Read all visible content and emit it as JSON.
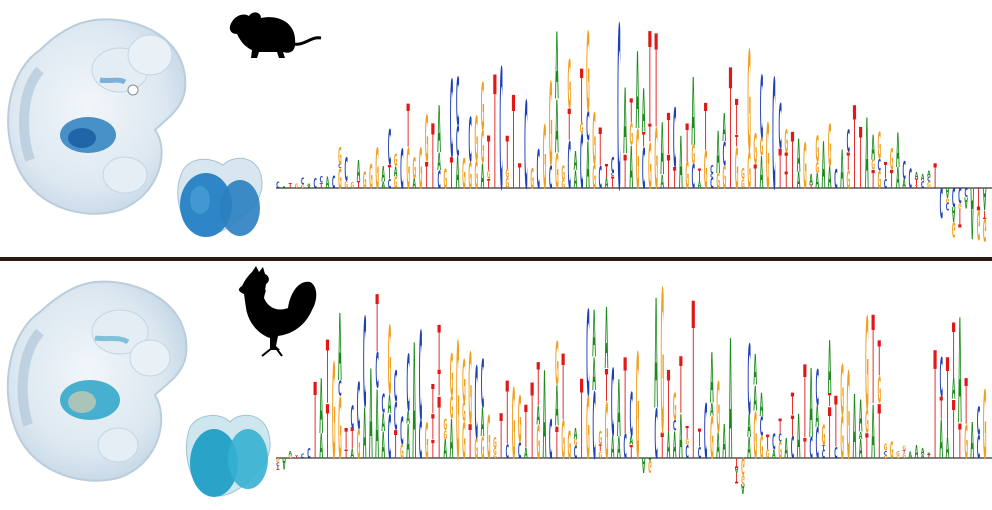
{
  "figure": {
    "panels": [
      {
        "id": "mouse",
        "organism_icon": "mouse-silhouette-icon",
        "embryo_stain_color": "#2a7fc0",
        "logo_seed": 11
      },
      {
        "id": "chicken",
        "organism_icon": "rooster-silhouette-icon",
        "embryo_stain_color": "#2aa3c8",
        "logo_seed": 29
      }
    ],
    "nucleotide_colors": {
      "A": "#1a8a1a",
      "C": "#1f3fb4",
      "G": "#f0a020",
      "T": "#e01818"
    },
    "divider_color": "#2a1a12"
  }
}
